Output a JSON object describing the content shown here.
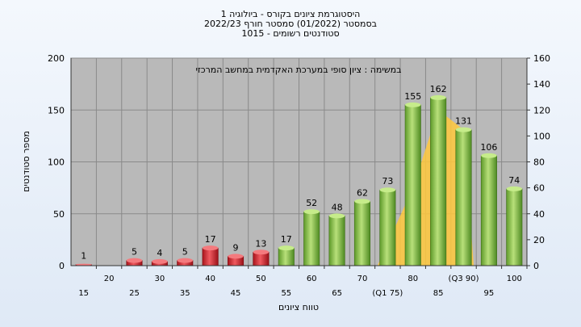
{
  "header": {
    "line1": "היסטוגרמת ציונים בקורס - ביולוגיה 1",
    "line2": "בסמסטר  (01/2022)  סמסטר חורף  2022/23",
    "line3": "סטודנטים רשומים - 1015"
  },
  "chart_data": {
    "type": "bar",
    "title": "היסטוגרמת ציונים בקורס - ביולוגיה 1",
    "annotation": "במשימה : ציון סופי במערכת האקדמית במחשב המרכזי",
    "xlabel": "טווח ציונים",
    "ylabel": "מספר סטודנטים",
    "ylim": [
      0,
      200
    ],
    "y2lim": [
      0,
      160
    ],
    "yticks": [
      0,
      50,
      100,
      150,
      200
    ],
    "y2ticks": [
      0,
      20,
      40,
      60,
      80,
      100,
      120,
      140,
      160
    ],
    "categories": [
      "15",
      "20",
      "25",
      "30",
      "35",
      "40",
      "45",
      "50",
      "55",
      "60",
      "65",
      "70",
      "75",
      "80",
      "85",
      "90",
      "95",
      "100"
    ],
    "category_labels": [
      "15",
      "20",
      "25",
      "30",
      "35",
      "40",
      "45",
      "50",
      "55",
      "60",
      "65",
      "70",
      "(Q1 75)",
      "80",
      "85",
      "(Q3 90)",
      "95",
      "100"
    ],
    "values": [
      1,
      0,
      5,
      4,
      5,
      17,
      9,
      13,
      17,
      52,
      48,
      62,
      73,
      155,
      162,
      131,
      106,
      74
    ],
    "value_labels": [
      "1",
      "",
      "5",
      "4",
      "5",
      "17",
      "9",
      "13",
      "17",
      "52",
      "48",
      "62",
      "73",
      "155",
      "162",
      "131",
      "106",
      "74"
    ],
    "bar_colors": [
      "#d8202a",
      "#d8202a",
      "#d8202a",
      "#d8202a",
      "#d8202a",
      "#d8202a",
      "#d8202a",
      "#d8202a",
      "#7cc040",
      "#7cc040",
      "#7cc040",
      "#7cc040",
      "#7cc040",
      "#7cc040",
      "#7cc040",
      "#7cc040",
      "#7cc040",
      "#7cc040"
    ],
    "overlay": {
      "type": "area",
      "color": "#ffc83c",
      "points": [
        [
          73,
          0
        ],
        [
          80,
          75
        ],
        [
          85,
          150
        ],
        [
          90,
          131
        ],
        [
          92,
          0
        ]
      ]
    },
    "grid": true,
    "plot_background": "#b9b9b9"
  }
}
